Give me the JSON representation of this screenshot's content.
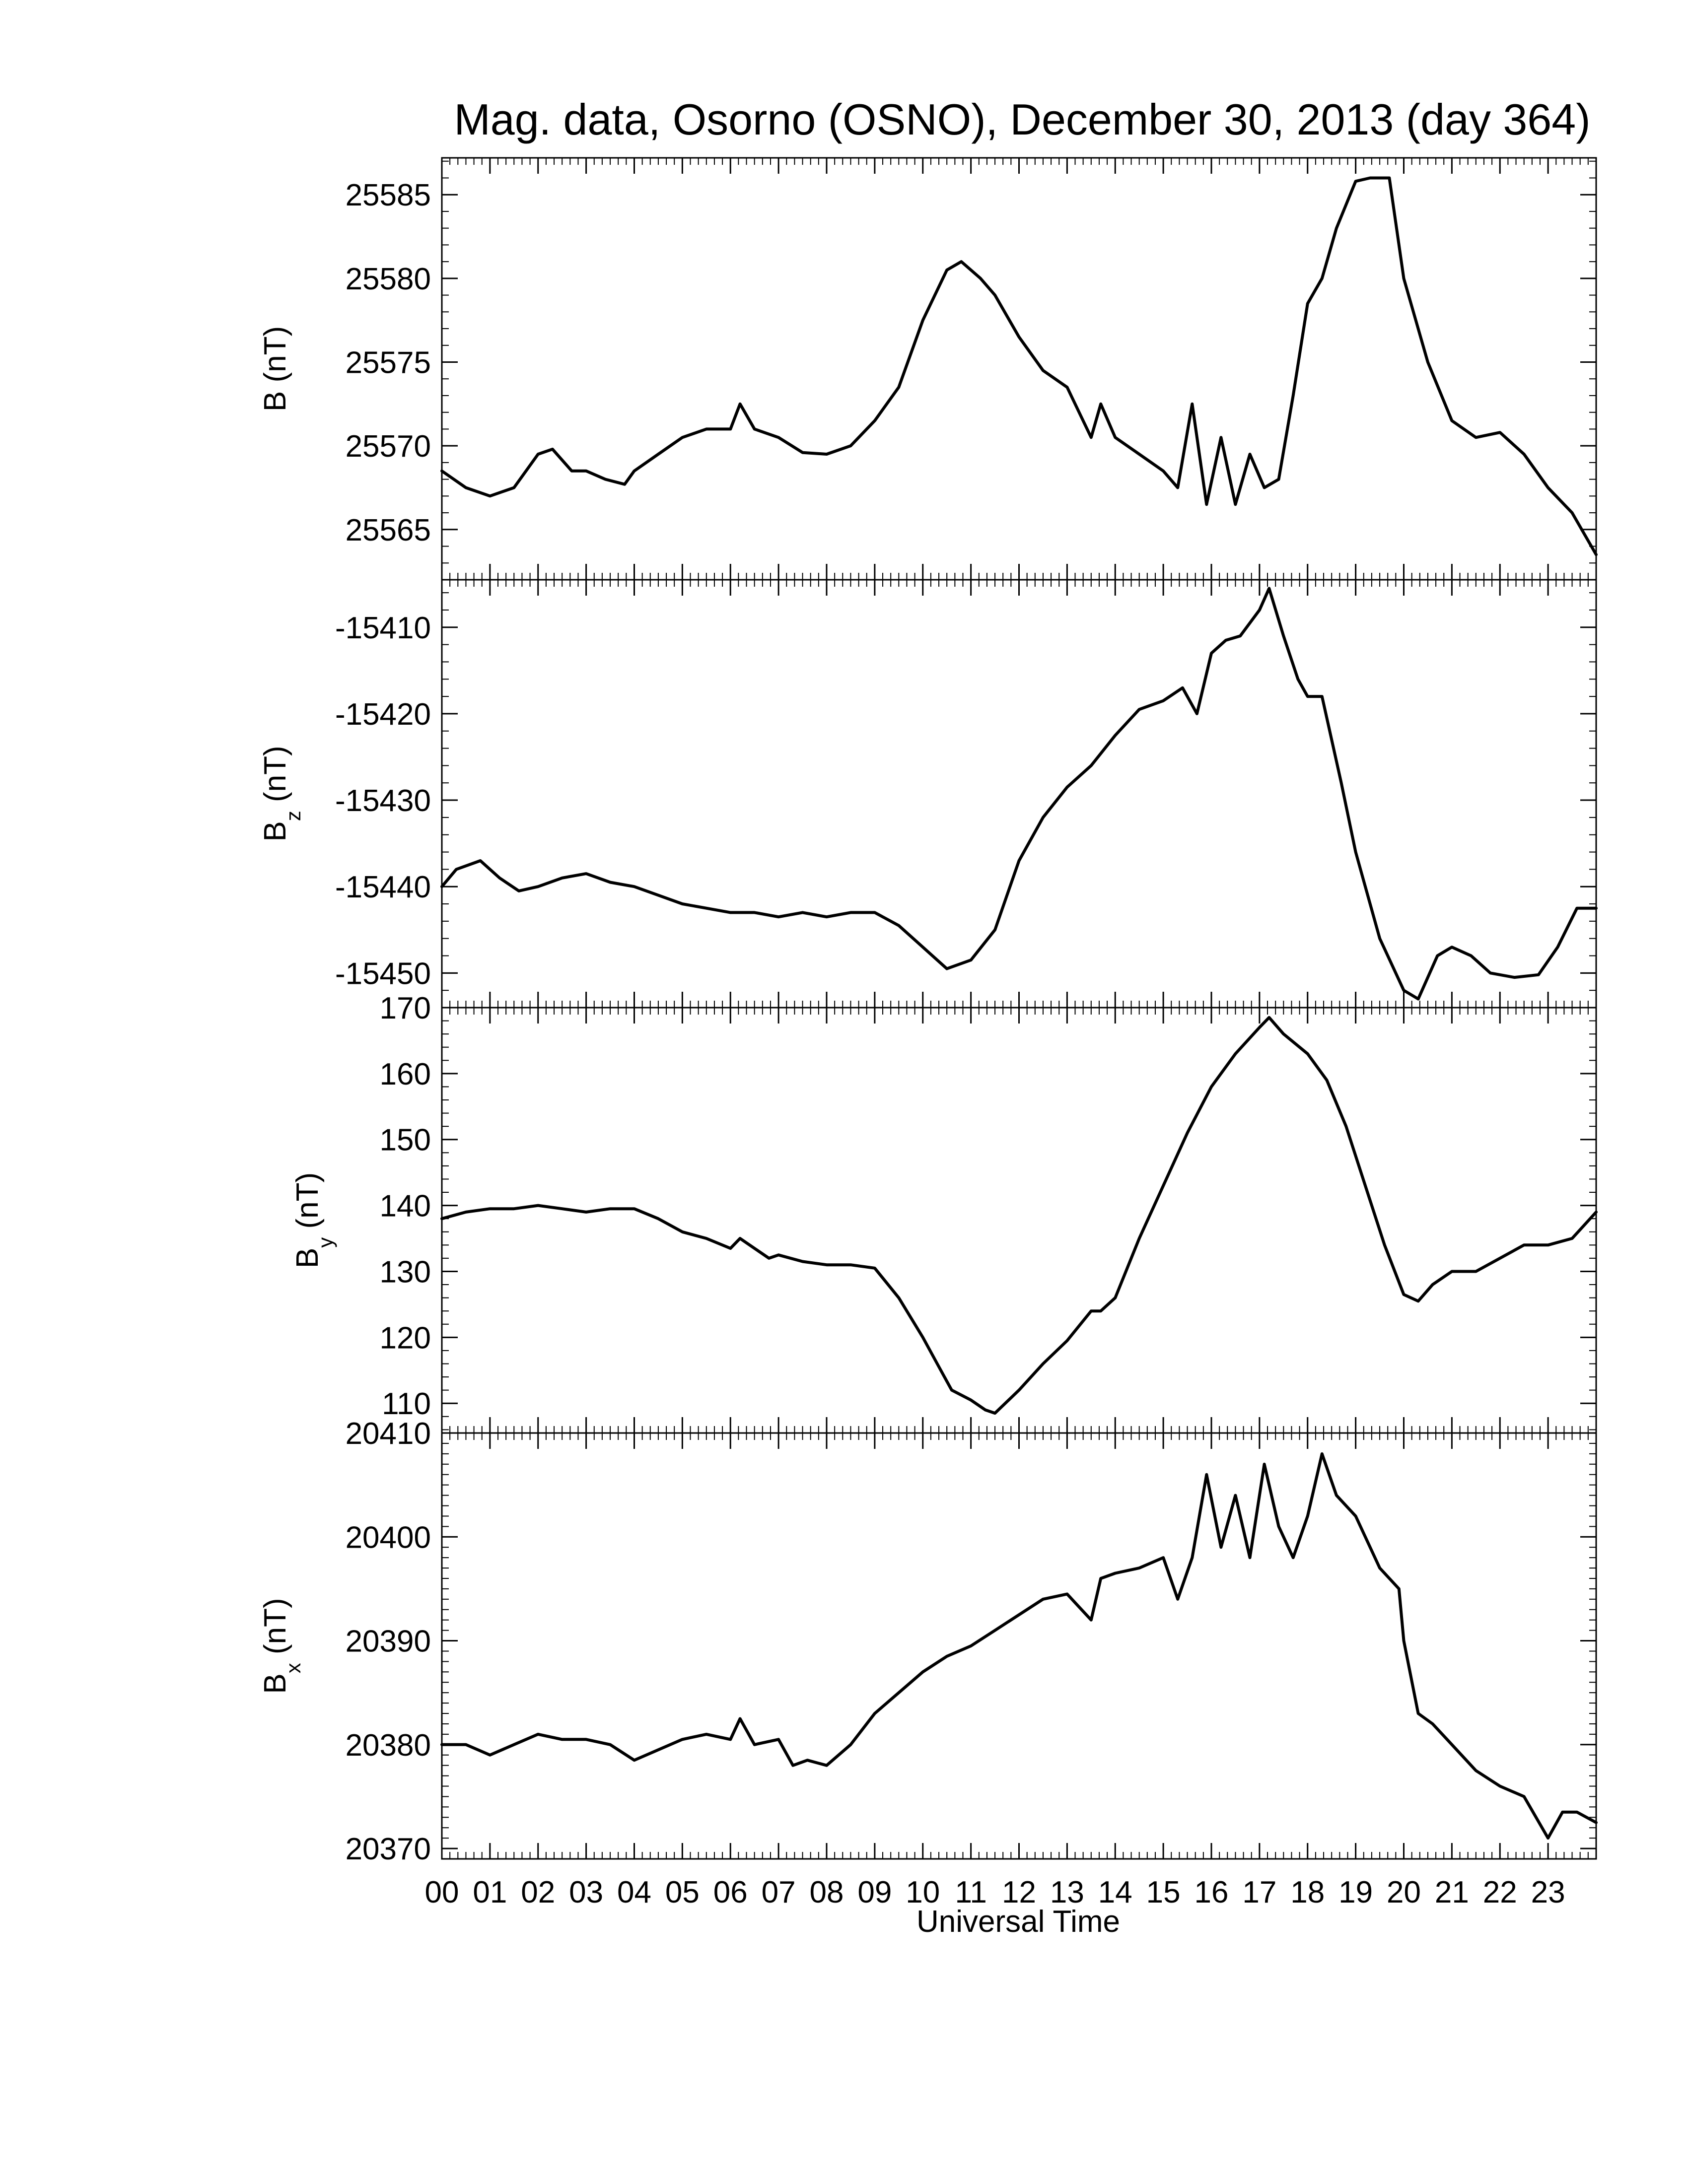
{
  "title": "Mag. data, Osorno (OSNO), December 30, 2013 (day 364)",
  "xlabel": "Universal Time",
  "x_tick_labels": [
    "00",
    "01",
    "02",
    "03",
    "04",
    "05",
    "06",
    "07",
    "08",
    "09",
    "10",
    "11",
    "12",
    "13",
    "14",
    "15",
    "16",
    "17",
    "18",
    "19",
    "20",
    "21",
    "22",
    "23"
  ],
  "line_color": "#000000",
  "chart_data": [
    {
      "type": "line",
      "ylabel": "B (nT)",
      "ylabel_base": "B",
      "ylabel_sub": "",
      "ylabel_unit": "(nT)",
      "xlim": [
        0,
        24
      ],
      "ylim": [
        25562,
        25587.2
      ],
      "y_ticks": [
        25565,
        25570,
        25575,
        25580,
        25585
      ],
      "y_minor_step": 1,
      "x": [
        0,
        0.5,
        1,
        1.5,
        2,
        2.3,
        2.7,
        3,
        3.4,
        3.8,
        4,
        4.5,
        5,
        5.5,
        6,
        6.2,
        6.5,
        7,
        7.5,
        8,
        8.5,
        9,
        9.5,
        10,
        10.5,
        10.8,
        11.2,
        11.5,
        12,
        12.5,
        13,
        13.5,
        13.7,
        14,
        14.5,
        15,
        15.3,
        15.6,
        15.9,
        16.2,
        16.5,
        16.8,
        17.1,
        17.4,
        17.7,
        18,
        18.3,
        18.6,
        19,
        19.3,
        19.7,
        20,
        20.5,
        21,
        21.5,
        22,
        22.5,
        23,
        23.5,
        24
      ],
      "y": [
        25568.5,
        25567.5,
        25567,
        25567.5,
        25569.5,
        25569.8,
        25568.5,
        25568.5,
        25568,
        25567.7,
        25568.5,
        25569.5,
        25570.5,
        25571,
        25571,
        25572.5,
        25571,
        25570.5,
        25569.6,
        25569.5,
        25570,
        25571.5,
        25573.5,
        25577.5,
        25580.5,
        25581,
        25580,
        25579,
        25576.5,
        25574.5,
        25573.5,
        25570.5,
        25572.5,
        25570.5,
        25569.5,
        25568.5,
        25567.5,
        25572.5,
        25566.5,
        25570.5,
        25566.5,
        25569.5,
        25567.5,
        25568,
        25573,
        25578.5,
        25580,
        25583,
        25585.8,
        25586,
        25586,
        25580,
        25575,
        25571.5,
        25570.5,
        25570.8,
        25569.5,
        25567.5,
        25566,
        25563.5
      ]
    },
    {
      "type": "line",
      "ylabel": "Bz (nT)",
      "ylabel_base": "B",
      "ylabel_sub": "z",
      "ylabel_unit": "(nT)",
      "xlim": [
        0,
        24
      ],
      "ylim": [
        -15454,
        -15404.5
      ],
      "y_ticks": [
        -15450,
        -15440,
        -15430,
        -15420,
        -15410
      ],
      "y_minor_step": 2,
      "x": [
        0,
        0.3,
        0.8,
        1.2,
        1.6,
        2,
        2.5,
        3,
        3.5,
        4,
        4.5,
        5,
        5.5,
        6,
        6.5,
        7,
        7.5,
        8,
        8.5,
        9,
        9.5,
        10,
        10.5,
        11,
        11.5,
        12,
        12.5,
        13,
        13.5,
        14,
        14.5,
        15,
        15.4,
        15.7,
        16,
        16.3,
        16.6,
        17,
        17.2,
        17.5,
        17.8,
        18,
        18.3,
        18.7,
        19,
        19.5,
        20,
        20.3,
        20.7,
        21,
        21.4,
        21.8,
        22.3,
        22.8,
        23.2,
        23.6,
        24
      ],
      "y": [
        -15440,
        -15438,
        -15437,
        -15439,
        -15440.5,
        -15440,
        -15439,
        -15438.5,
        -15439.5,
        -15440,
        -15441,
        -15442,
        -15442.5,
        -15443,
        -15443,
        -15443.5,
        -15443,
        -15443.5,
        -15443,
        -15443,
        -15444.5,
        -15447,
        -15449.5,
        -15448.5,
        -15445,
        -15437,
        -15432,
        -15428.5,
        -15426,
        -15422.5,
        -15419.5,
        -15418.5,
        -15417,
        -15420,
        -15413,
        -15411.5,
        -15411,
        -15408,
        -15405.5,
        -15411,
        -15416,
        -15418,
        -15418,
        -15428,
        -15436,
        -15446,
        -15452,
        -15453,
        -15448,
        -15447,
        -15448,
        -15450,
        -15450.5,
        -15450.2,
        -15447,
        -15442.5,
        -15442.5
      ]
    },
    {
      "type": "line",
      "ylabel": "By (nT)",
      "ylabel_base": "B",
      "ylabel_sub": "y",
      "ylabel_unit": "(nT)",
      "xlim": [
        0,
        24
      ],
      "ylim": [
        105.5,
        170
      ],
      "y_ticks": [
        110,
        120,
        130,
        140,
        150,
        160,
        170
      ],
      "y_minor_step": 2,
      "x": [
        0,
        0.5,
        1,
        1.5,
        2,
        2.5,
        3,
        3.5,
        4,
        4.5,
        5,
        5.5,
        6,
        6.2,
        6.5,
        6.8,
        7,
        7.5,
        8,
        8.5,
        9,
        9.5,
        10,
        10.3,
        10.6,
        11,
        11.3,
        11.5,
        12,
        12.5,
        13,
        13.5,
        13.7,
        14,
        14.5,
        15,
        15.5,
        16,
        16.5,
        17,
        17.2,
        17.5,
        18,
        18.4,
        18.8,
        19.2,
        19.6,
        20,
        20.3,
        20.6,
        21,
        21.5,
        22,
        22.5,
        23,
        23.5,
        24
      ],
      "y": [
        138,
        139,
        139.5,
        139.5,
        140,
        139.5,
        139,
        139.5,
        139.5,
        138,
        136,
        135,
        133.5,
        135,
        133.5,
        132,
        132.5,
        131.5,
        131,
        131,
        130.5,
        126,
        120,
        116,
        112,
        110.5,
        109,
        108.5,
        112,
        116,
        119.5,
        124,
        124,
        126,
        135,
        143,
        151,
        158,
        163,
        167,
        168.5,
        166,
        163,
        159,
        152,
        143,
        134,
        126.5,
        125.5,
        128,
        130,
        130,
        132,
        134,
        134,
        135,
        139
      ]
    },
    {
      "type": "line",
      "ylabel": "Bx (nT)",
      "ylabel_base": "B",
      "ylabel_sub": "x",
      "ylabel_unit": "(nT)",
      "xlim": [
        0,
        24
      ],
      "ylim": [
        20369,
        20410
      ],
      "y_ticks": [
        20370,
        20380,
        20390,
        20400,
        20410
      ],
      "y_minor_step": 1,
      "x": [
        0,
        0.5,
        1,
        1.5,
        2,
        2.5,
        3,
        3.5,
        4,
        4.5,
        5,
        5.5,
        6,
        6.2,
        6.5,
        7,
        7.3,
        7.6,
        8,
        8.5,
        9,
        9.5,
        10,
        10.5,
        11,
        11.5,
        12,
        12.5,
        13,
        13.5,
        13.7,
        14,
        14.5,
        15,
        15.3,
        15.6,
        15.9,
        16.2,
        16.5,
        16.8,
        17.1,
        17.4,
        17.7,
        18,
        18.3,
        18.6,
        19,
        19.5,
        19.9,
        20,
        20.3,
        20.6,
        21,
        21.5,
        22,
        22.5,
        23,
        23.3,
        23.6,
        24
      ],
      "y": [
        20380,
        20380,
        20379,
        20380,
        20381,
        20380.5,
        20380.5,
        20380,
        20378.5,
        20379.5,
        20380.5,
        20381,
        20380.5,
        20382.5,
        20380,
        20380.5,
        20378,
        20378.5,
        20378,
        20380,
        20383,
        20385,
        20387,
        20388.5,
        20389.5,
        20391,
        20392.5,
        20394,
        20394.5,
        20392,
        20396,
        20396.5,
        20397,
        20398,
        20394,
        20398,
        20406,
        20399,
        20404,
        20398,
        20407,
        20401,
        20398,
        20402,
        20408,
        20404,
        20402,
        20397,
        20395,
        20390,
        20383,
        20382,
        20380,
        20377.5,
        20376,
        20375,
        20371,
        20373.5,
        20373.5,
        20372.5
      ]
    }
  ]
}
